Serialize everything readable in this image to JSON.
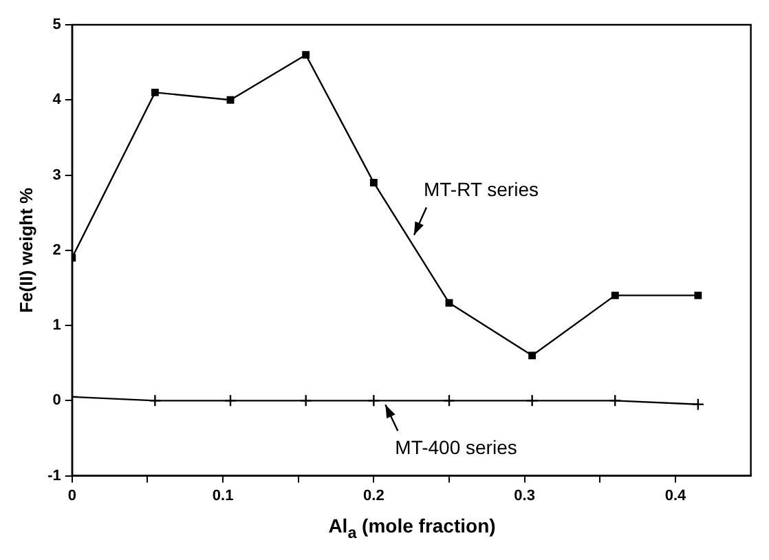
{
  "chart_data": {
    "type": "line",
    "xlabel": "Al$_{a}$ (mole fraction)",
    "ylabel": "Fe(II) weight %",
    "xlim": [
      0,
      0.45
    ],
    "xticks": [
      0,
      {
        "value": 0.05,
        "label": null
      },
      0.1,
      {
        "value": 0.15,
        "label": null
      },
      0.2,
      {
        "value": 0.25,
        "label": null
      },
      0.3,
      {
        "value": 0.35,
        "label": null
      },
      0.4
    ],
    "ylim": [
      -1,
      5
    ],
    "yticks": [
      -1,
      0,
      1,
      2,
      3,
      4,
      5
    ],
    "grid": false,
    "legend": false,
    "line_style": "solid",
    "series": [
      {
        "color": "#000000",
        "marker": "square",
        "x": [
          0,
          0.055,
          0.105,
          0.155,
          0.2,
          0.25,
          0.305,
          0.36,
          0.415
        ],
        "values": [
          1.9,
          4.1,
          4.0,
          4.6,
          2.9,
          1.3,
          0.6,
          1.4,
          1.4
        ]
      },
      {
        "color": "#000000",
        "marker": "cross",
        "x": [
          0,
          0.055,
          0.105,
          0.155,
          0.2,
          0.25,
          0.305,
          0.36,
          0.415
        ],
        "values": [
          0.05,
          0,
          0,
          0,
          0,
          0,
          0,
          0,
          -0.05
        ]
      }
    ],
    "annotations": [
      {
        "text": "MT-RT series",
        "x": 0.224,
        "y": 2.13
      },
      {
        "text": "MT-400 series",
        "x": 0.205,
        "y": 0
      }
    ]
  }
}
